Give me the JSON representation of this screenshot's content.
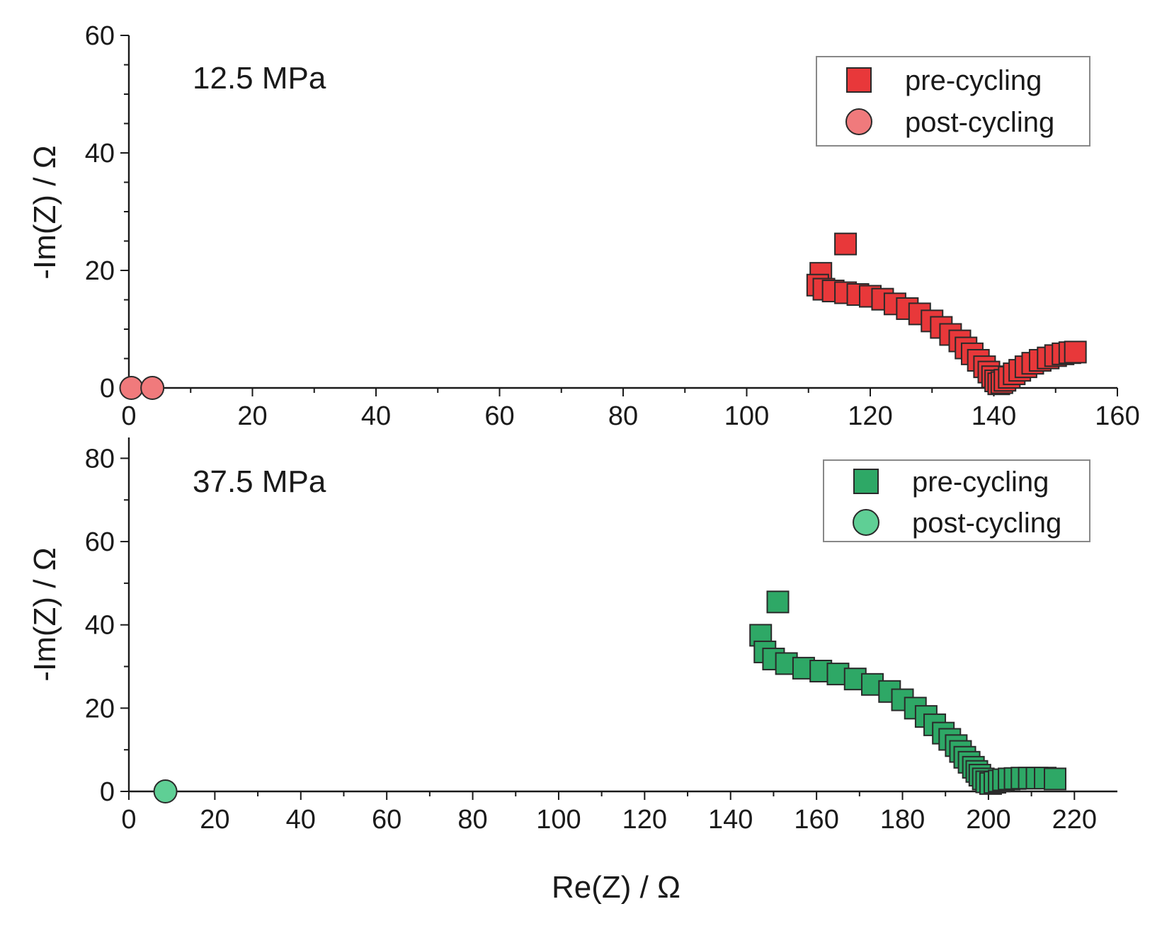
{
  "chart_data": [
    {
      "type": "scatter",
      "annotation": "12.5 MPa",
      "xlabel": "",
      "ylabel": "-Im(Z) / Ω",
      "xlim": [
        0,
        160
      ],
      "ylim": [
        0,
        60
      ],
      "xticks": [
        "0",
        "20",
        "40",
        "60",
        "80",
        "100",
        "120",
        "140",
        "160"
      ],
      "yticks": [
        "0",
        "20",
        "40",
        "60"
      ],
      "legend_position": "top-right",
      "series": [
        {
          "name": "pre-cycling",
          "marker": "square",
          "color": "#e8383a",
          "x": [
            116,
            112,
            111.5,
            112.5,
            114,
            116,
            118,
            120,
            122,
            124,
            126,
            128,
            130,
            131.5,
            133,
            134.5,
            135.5,
            136.5,
            137.5,
            138.5,
            139.2,
            139.8,
            140.3,
            140.8,
            141.3,
            141.8,
            142.5,
            143.3,
            144.2,
            145.2,
            146.3,
            147.5,
            148.8,
            150,
            151.2,
            152.3,
            153.2
          ],
          "y": [
            24.5,
            19.5,
            17.5,
            16.8,
            16.5,
            16.2,
            15.9,
            15.6,
            15.1,
            14.3,
            13.5,
            12.6,
            11.4,
            10.3,
            9.1,
            8.0,
            6.8,
            5.8,
            4.7,
            3.6,
            2.7,
            1.9,
            1.2,
            0.7,
            0.9,
            1.3,
            1.8,
            2.4,
            3.0,
            3.6,
            4.2,
            4.7,
            5.1,
            5.5,
            5.8,
            6.0,
            6.1
          ]
        },
        {
          "name": "post-cycling",
          "marker": "circle",
          "color": "#f07a7c",
          "x": [
            0.4,
            3.8
          ],
          "y": [
            0,
            0
          ]
        }
      ]
    },
    {
      "type": "scatter",
      "annotation": "37.5 MPa",
      "xlabel": "Re(Z) / Ω",
      "ylabel": "-Im(Z) / Ω",
      "xlim": [
        0,
        230
      ],
      "ylim": [
        0,
        85
      ],
      "xticks": [
        "0",
        "20",
        "40",
        "60",
        "80",
        "100",
        "120",
        "140",
        "160",
        "180",
        "200",
        "220"
      ],
      "yticks": [
        "0",
        "20",
        "40",
        "60",
        "80"
      ],
      "legend_position": "top-right",
      "series": [
        {
          "name": "pre-cycling",
          "marker": "square",
          "color": "#2ea866",
          "x": [
            151,
            147,
            148,
            150,
            153,
            157,
            161,
            165,
            169,
            173,
            177,
            180,
            183,
            185.5,
            187.5,
            189.5,
            191,
            192.5,
            193.5,
            194.5,
            195.5,
            196.5,
            197.3,
            198,
            198.8,
            199.6,
            200.5,
            201.5,
            202.5,
            203.5,
            204.8,
            206.2,
            207.8,
            209.5,
            211.3,
            213.2,
            215.5
          ],
          "y": [
            45.5,
            37.5,
            33.5,
            31.8,
            30.7,
            29.6,
            28.9,
            28.2,
            27.0,
            25.7,
            24.0,
            22.0,
            20.0,
            18.0,
            16.0,
            14.0,
            12.5,
            11.0,
            9.6,
            8.2,
            7.0,
            5.8,
            4.8,
            3.9,
            3.0,
            2.3,
            1.9,
            2.2,
            2.5,
            2.8,
            3.0,
            3.1,
            3.2,
            3.2,
            3.2,
            3.2,
            3.0
          ]
        },
        {
          "name": "post-cycling",
          "marker": "circle",
          "color": "#5fcf95",
          "x": [
            8.5
          ],
          "y": [
            0
          ]
        }
      ]
    }
  ]
}
